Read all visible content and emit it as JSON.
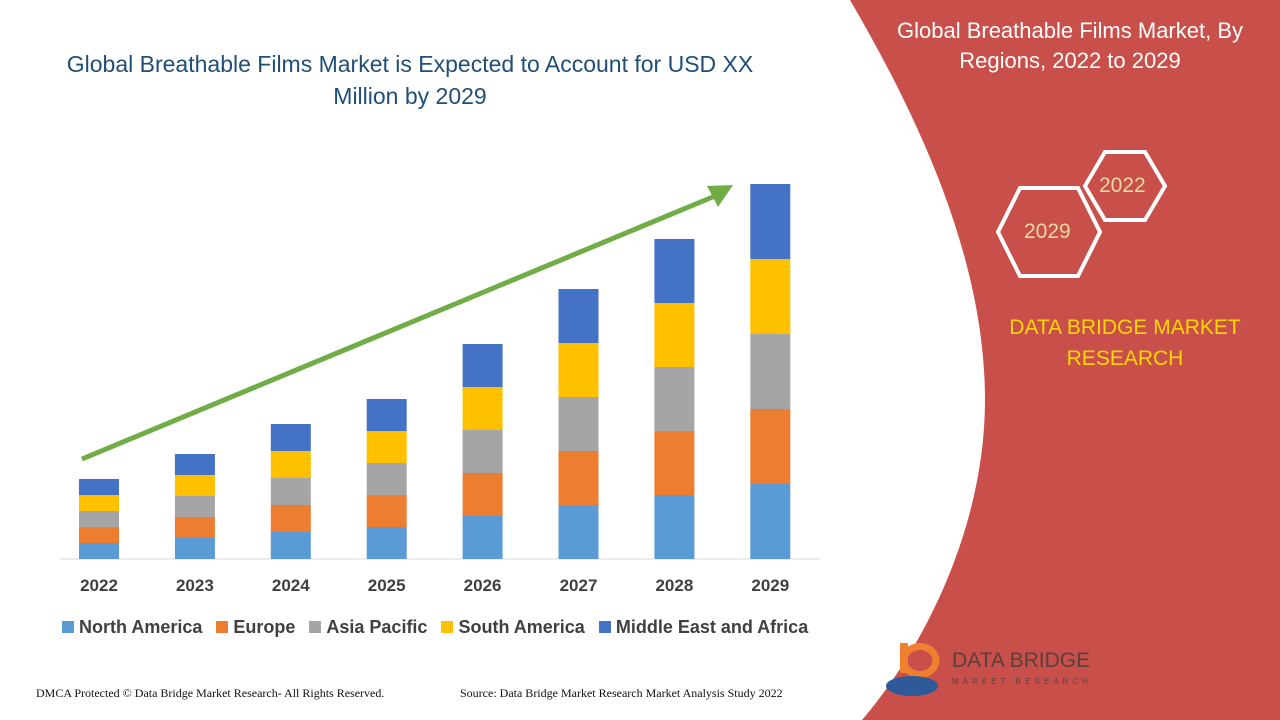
{
  "header": {
    "title": "Global Breathable Films Market is Expected to Account for USD XX Million by 2029"
  },
  "side": {
    "title": "Global Breathable Films Market, By Regions, 2022 to 2029",
    "hex_top": "2022",
    "hex_bottom": "2029",
    "brand": "DATA BRIDGE MARKET RESEARCH",
    "logo_text": "DATA BRIDGE",
    "logo_sub": "MARKET RESEARCH",
    "panel_color": "#C9504A"
  },
  "footer": {
    "left": "DMCA Protected © Data Bridge Market Research- All Rights Reserved.",
    "right": "Source: Data Bridge Market Research Market Analysis Study 2022"
  },
  "chart_data": {
    "type": "bar",
    "stacked": true,
    "title": "",
    "xlabel": "",
    "ylabel": "",
    "ylim": [
      0,
      400
    ],
    "grid": false,
    "legend": "bottom",
    "trend_arrow": true,
    "categories": [
      "2022",
      "2023",
      "2024",
      "2025",
      "2026",
      "2027",
      "2028",
      "2029"
    ],
    "series": [
      {
        "name": "North America",
        "color": "#5B9BD5",
        "values": [
          16,
          21,
          27,
          32,
          43,
          54,
          64,
          75
        ]
      },
      {
        "name": "Europe",
        "color": "#ED7D31",
        "values": [
          16,
          21,
          27,
          32,
          43,
          54,
          64,
          75
        ]
      },
      {
        "name": "Asia Pacific",
        "color": "#A5A5A5",
        "values": [
          16,
          21,
          27,
          32,
          43,
          54,
          64,
          75
        ]
      },
      {
        "name": "South America",
        "color": "#FFC000",
        "values": [
          16,
          21,
          27,
          32,
          43,
          54,
          64,
          75
        ]
      },
      {
        "name": "Middle East and Africa",
        "color": "#4472C4",
        "values": [
          16,
          21,
          27,
          32,
          43,
          54,
          64,
          75
        ]
      }
    ]
  }
}
